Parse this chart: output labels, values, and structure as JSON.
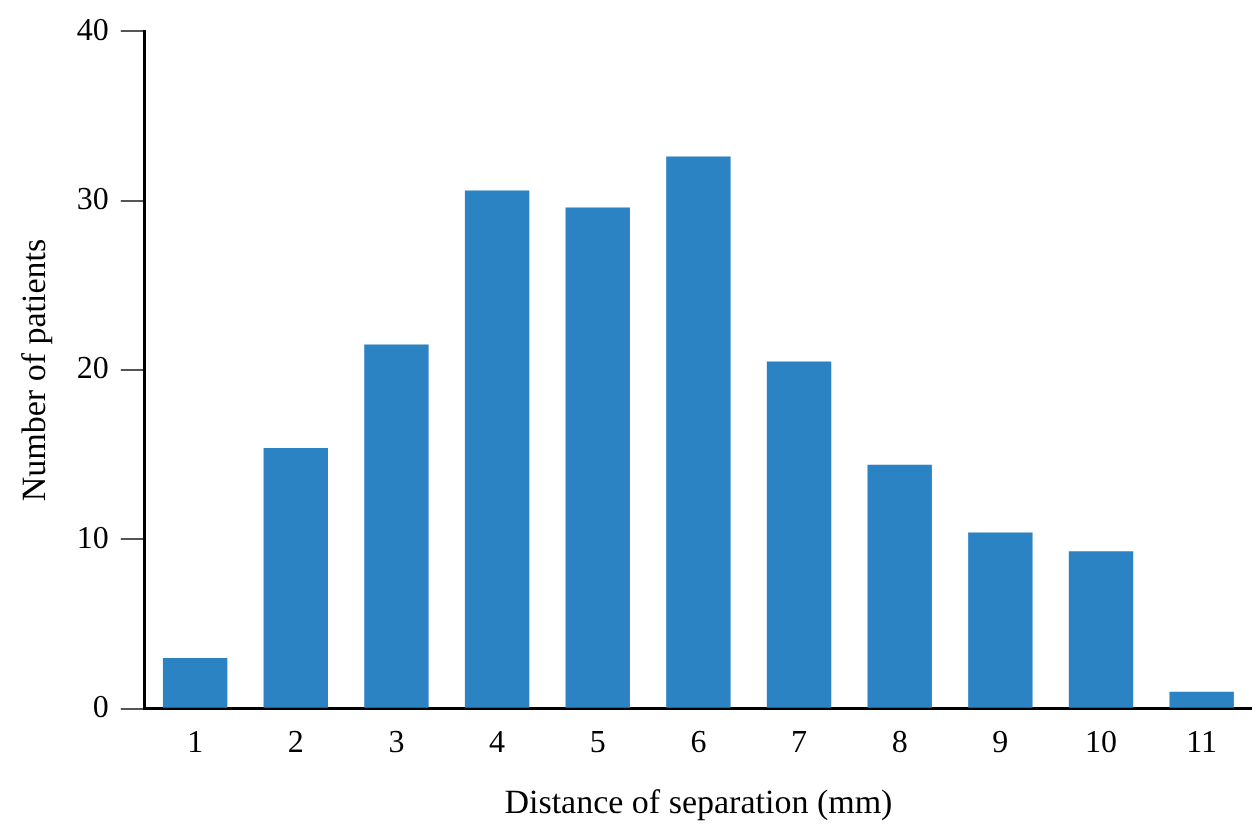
{
  "chart_data": {
    "type": "bar",
    "xlabel": "Distance of separation (mm)",
    "ylabel": "Number of patients",
    "categories": [
      "1",
      "2",
      "3",
      "4",
      "5",
      "6",
      "7",
      "8",
      "9",
      "10",
      "11"
    ],
    "values": [
      3,
      15.4,
      21.5,
      30.6,
      29.6,
      32.6,
      20.5,
      14.4,
      10.4,
      9.3,
      1
    ],
    "color": "#2c83c3",
    "ylim": [
      0,
      40
    ],
    "yticks": [
      0,
      10,
      20,
      30,
      40
    ],
    "grid": false,
    "legend": false
  }
}
